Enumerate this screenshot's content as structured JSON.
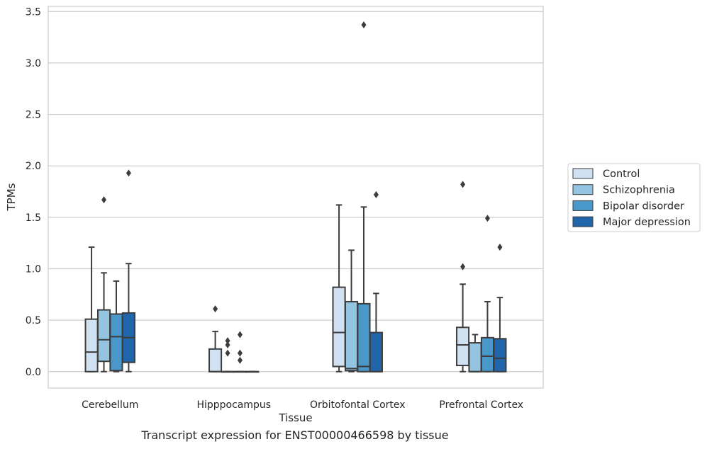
{
  "caption": "Transcript expression for ENST00000466598 by tissue",
  "chart_data": {
    "type": "box",
    "xlabel": "Tissue",
    "ylabel": "TPMs",
    "ylim": [
      -0.16,
      3.55
    ],
    "yticks": [
      0.0,
      0.5,
      1.0,
      1.5,
      2.0,
      2.5,
      3.0,
      3.5
    ],
    "ytick_labels": [
      "0.0",
      "0.5",
      "1.0",
      "1.5",
      "2.0",
      "2.5",
      "3.0",
      "3.5"
    ],
    "grid": true,
    "legend_position": "right",
    "categories": [
      "Cerebellum",
      "Hipppocampus",
      "Orbitofontal Cortex",
      "Prefrontal Cortex"
    ],
    "series": [
      {
        "name": "Control",
        "color": "#d0e1f2",
        "boxes": [
          {
            "whislo": 0.0,
            "q1": 0.0,
            "med": 0.19,
            "q3": 0.51,
            "whishi": 1.21,
            "fliers": []
          },
          {
            "whislo": 0.0,
            "q1": 0.0,
            "med": 0.0,
            "q3": 0.22,
            "whishi": 0.39,
            "fliers": [
              0.61
            ]
          },
          {
            "whislo": 0.0,
            "q1": 0.05,
            "med": 0.38,
            "q3": 0.82,
            "whishi": 1.62,
            "fliers": []
          },
          {
            "whislo": 0.0,
            "q1": 0.06,
            "med": 0.26,
            "q3": 0.43,
            "whishi": 0.85,
            "fliers": [
              1.02,
              1.82
            ]
          }
        ]
      },
      {
        "name": "Schizophrenia",
        "color": "#94c4df",
        "boxes": [
          {
            "whislo": 0.0,
            "q1": 0.1,
            "med": 0.31,
            "q3": 0.6,
            "whishi": 0.96,
            "fliers": [
              1.67
            ]
          },
          {
            "whislo": 0.0,
            "q1": 0.0,
            "med": 0.0,
            "q3": 0.0,
            "whishi": 0.0,
            "fliers": [
              0.18,
              0.26,
              0.3
            ]
          },
          {
            "whislo": 0.0,
            "q1": 0.01,
            "med": 0.03,
            "q3": 0.68,
            "whishi": 1.18,
            "fliers": []
          },
          {
            "whislo": 0.0,
            "q1": 0.0,
            "med": 0.0,
            "q3": 0.28,
            "whishi": 0.36,
            "fliers": []
          }
        ]
      },
      {
        "name": "Bipolar disorder",
        "color": "#4a98c9",
        "boxes": [
          {
            "whislo": 0.0,
            "q1": 0.01,
            "med": 0.34,
            "q3": 0.56,
            "whishi": 0.88,
            "fliers": []
          },
          {
            "whislo": 0.0,
            "q1": 0.0,
            "med": 0.0,
            "q3": 0.0,
            "whishi": 0.0,
            "fliers": [
              0.11,
              0.18,
              0.36
            ]
          },
          {
            "whislo": 0.0,
            "q1": 0.0,
            "med": 0.05,
            "q3": 0.66,
            "whishi": 1.6,
            "fliers": [
              3.37
            ]
          },
          {
            "whislo": 0.0,
            "q1": 0.0,
            "med": 0.15,
            "q3": 0.33,
            "whishi": 0.68,
            "fliers": [
              1.49
            ]
          }
        ]
      },
      {
        "name": "Major depression",
        "color": "#2165ab",
        "boxes": [
          {
            "whislo": 0.0,
            "q1": 0.09,
            "med": 0.33,
            "q3": 0.57,
            "whishi": 1.05,
            "fliers": [
              1.93
            ]
          },
          {
            "whislo": 0.0,
            "q1": 0.0,
            "med": 0.0,
            "q3": 0.0,
            "whishi": 0.0,
            "fliers": []
          },
          {
            "whislo": 0.0,
            "q1": 0.0,
            "med": 0.0,
            "q3": 0.38,
            "whishi": 0.76,
            "fliers": [
              1.72
            ]
          },
          {
            "whislo": 0.0,
            "q1": 0.0,
            "med": 0.13,
            "q3": 0.32,
            "whishi": 0.72,
            "fliers": [
              1.21
            ]
          }
        ]
      }
    ]
  }
}
